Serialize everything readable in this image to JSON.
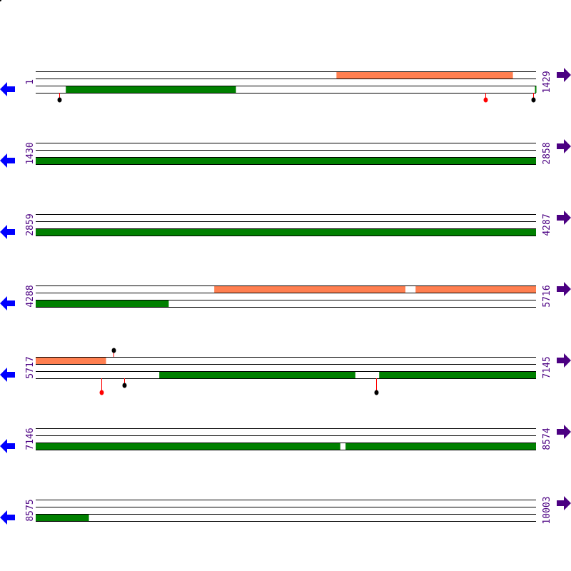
{
  "colors": {
    "forward_feature": "#ff7f50",
    "reverse_feature": "#008000",
    "line": "#000000",
    "stem": "#ff0000",
    "marker_black": "#000000",
    "marker_red": "#ff0000",
    "label": "#4b0082",
    "left_arrow": "#0000ff",
    "right_arrow": "#4b0082"
  },
  "icons": {
    "left": "arrow-left-icon",
    "right": "arrow-right-icon"
  },
  "rows": [
    {
      "start": "1",
      "end": "1429",
      "top": [
        [
          860,
          1363
        ]
      ],
      "bottom": [
        [
          87,
          572
        ],
        [
          1427,
          1429
        ]
      ],
      "markers": [
        {
          "pos": 68,
          "track": "bottom",
          "color": "black",
          "level": 1
        },
        {
          "pos": 1286,
          "track": "bottom",
          "color": "red",
          "level": 1
        },
        {
          "pos": 1421,
          "track": "bottom",
          "color": "black",
          "level": 1
        }
      ]
    },
    {
      "start": "1430",
      "end": "2858",
      "top": [],
      "bottom": [
        [
          1430,
          2858
        ]
      ],
      "markers": []
    },
    {
      "start": "2859",
      "end": "4287",
      "top": [],
      "bottom": [
        [
          2859,
          4287
        ]
      ],
      "markers": []
    },
    {
      "start": "4288",
      "end": "5716",
      "top": [
        [
          4798,
          5343
        ],
        [
          5373,
          5716
        ]
      ],
      "bottom": [
        [
          4288,
          4667
        ]
      ],
      "markers": []
    },
    {
      "start": "5717",
      "end": "7145",
      "top": [
        [
          5717,
          5917
        ]
      ],
      "bottom": [
        [
          6070,
          6629
        ],
        [
          6698,
          7145
        ]
      ],
      "markers": [
        {
          "pos": 5939,
          "track": "top",
          "color": "black",
          "level": 1
        },
        {
          "pos": 5905,
          "track": "bottom",
          "color": "red",
          "level": 2
        },
        {
          "pos": 5970,
          "track": "bottom",
          "color": "black",
          "level": 1
        },
        {
          "pos": 6690,
          "track": "bottom",
          "color": "black",
          "level": 2
        }
      ]
    },
    {
      "start": "7146",
      "end": "8574",
      "top": [],
      "bottom": [
        [
          7146,
          8015
        ],
        [
          8031,
          8574
        ]
      ],
      "markers": []
    },
    {
      "start": "8575",
      "end": "10003",
      "top": [],
      "bottom": [
        [
          8575,
          8726
        ]
      ],
      "markers": []
    }
  ]
}
